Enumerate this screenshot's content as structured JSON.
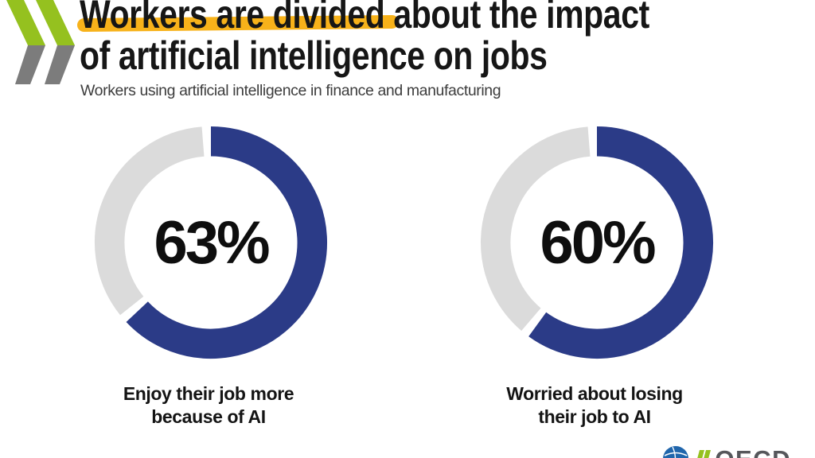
{
  "header": {
    "title_line1": "Workers are divided about the impact",
    "title_line2": "of artificial intelligence on jobs",
    "highlighted_phrase": "Workers are divided",
    "subtitle": "Workers using artificial intelligence in finance and manufacturing"
  },
  "chart_data": {
    "type": "pie",
    "variant": "donut-pair",
    "title": "Workers are divided about the impact of artificial intelligence on jobs",
    "subtitle": "Workers using artificial intelligence in finance and manufacturing",
    "start_angle_deg": 0,
    "direction": "clockwise",
    "donuts": [
      {
        "value": 63,
        "remainder": 37,
        "label": "63%",
        "caption_lines": [
          "Enjoy their job more",
          "because of AI"
        ]
      },
      {
        "value": 60,
        "remainder": 40,
        "label": "60%",
        "caption_lines": [
          "Worried about losing",
          "their job to AI"
        ]
      }
    ],
    "colors": {
      "filled": "#2B3B87",
      "remainder": "#DBDBDB"
    }
  },
  "branding": {
    "oecd_wordmark": "OECD",
    "colors": {
      "chevron_green": "#95C11F",
      "chevron_gray": "#7C7C7C",
      "globe_blue": "#2066AC",
      "wordmark_gray": "#56575B",
      "highlight_yellow": "#F7B21A"
    }
  }
}
